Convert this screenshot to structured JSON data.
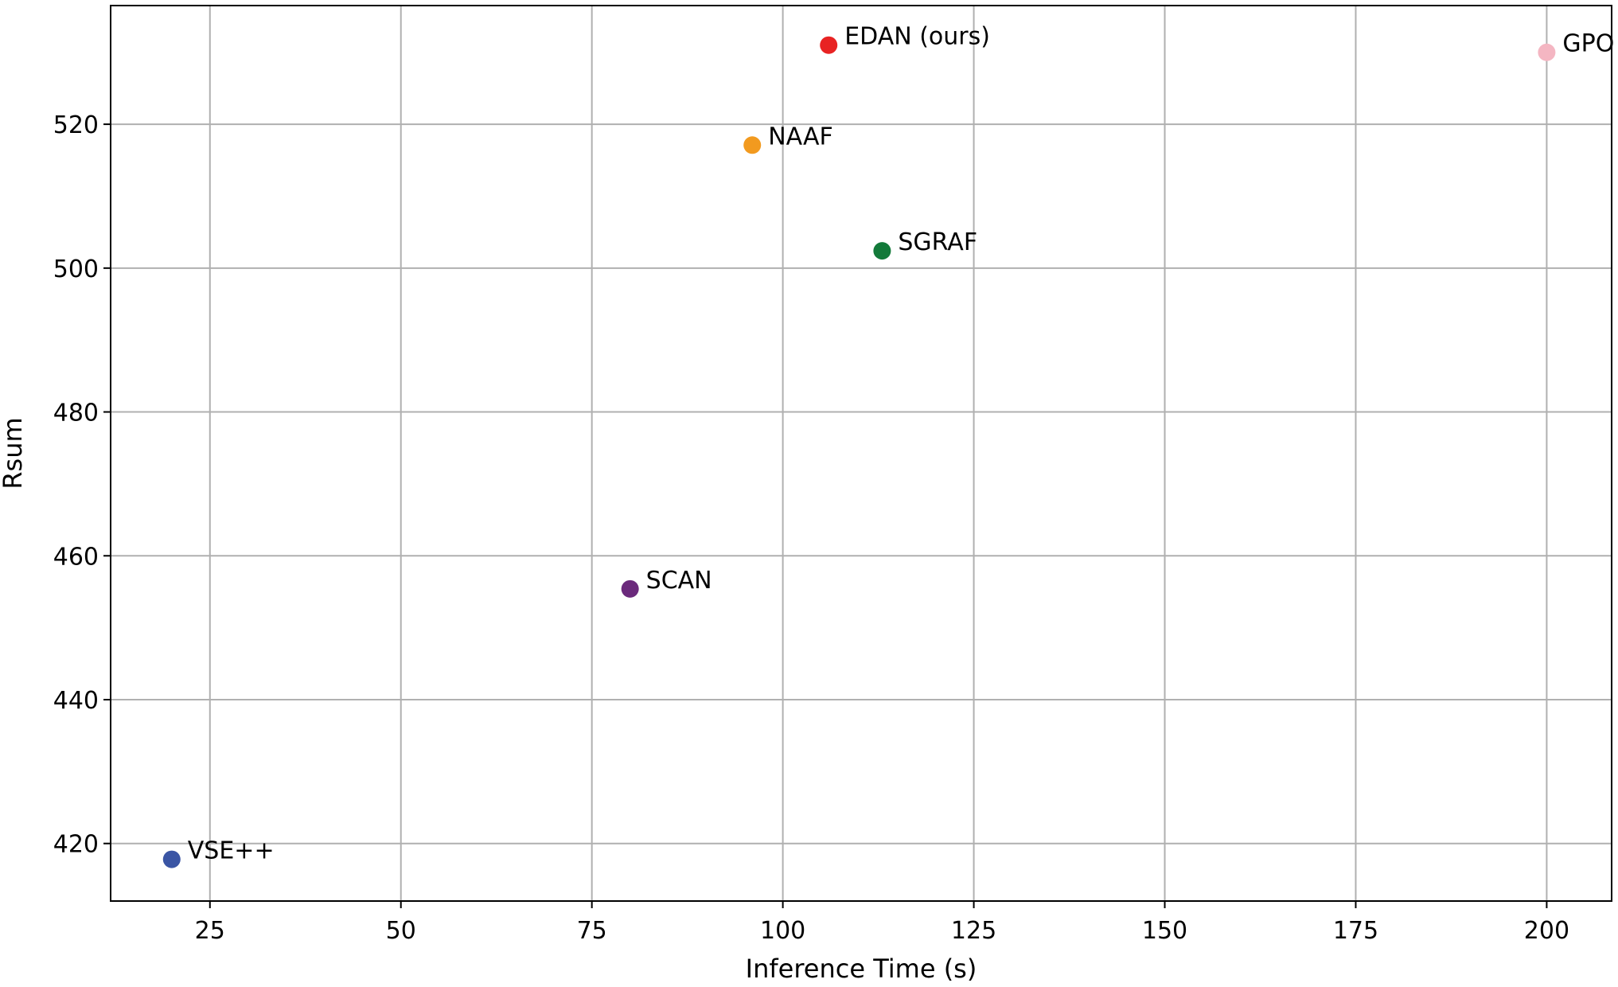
{
  "chart_data": {
    "type": "scatter",
    "title": "",
    "xlabel": "Inference Time (s)",
    "ylabel": "Rsum",
    "xlim": [
      12,
      208.5
    ],
    "ylim": [
      412,
      536.5
    ],
    "xticks": [
      25,
      50,
      75,
      100,
      125,
      150,
      175,
      200
    ],
    "yticks": [
      420,
      440,
      460,
      480,
      500,
      520
    ],
    "grid": true,
    "legend": "none",
    "points": [
      {
        "label": "VSE++",
        "x": 20,
        "y": 417.8,
        "color": "#3a55a4"
      },
      {
        "label": "SCAN",
        "x": 80,
        "y": 455.4,
        "color": "#6b2a7c"
      },
      {
        "label": "NAAF",
        "x": 96,
        "y": 517.1,
        "color": "#f29a1f"
      },
      {
        "label": "EDAN (ours)",
        "x": 106,
        "y": 531.0,
        "color": "#e82323"
      },
      {
        "label": "SGRAF",
        "x": 113,
        "y": 502.4,
        "color": "#137a3a"
      },
      {
        "label": "GPO",
        "x": 200,
        "y": 530.0,
        "color": "#f4b6c2"
      }
    ]
  }
}
